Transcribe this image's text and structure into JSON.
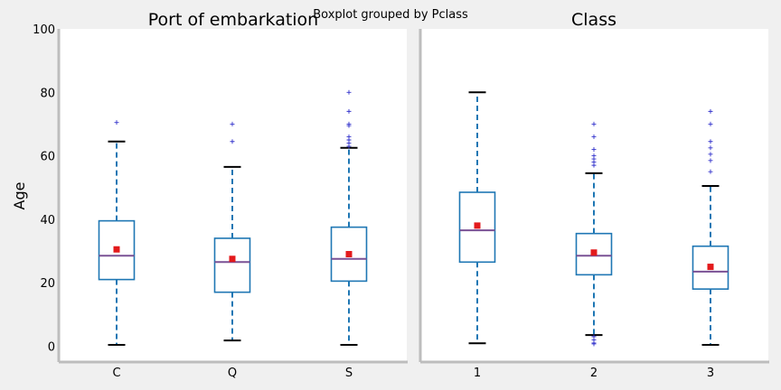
{
  "suptitle": "Boxplot grouped by Pclass",
  "chart_data": [
    {
      "type": "box",
      "title": "Port of embarkation",
      "ylabel": "Age",
      "ylim": [
        -5,
        100
      ],
      "yticks": [
        0,
        20,
        40,
        60,
        80,
        100
      ],
      "categories": [
        "C",
        "Q",
        "S"
      ],
      "boxes": [
        {
          "category": "C",
          "whisker_low": 0.4,
          "q1": 21,
          "median": 28.5,
          "q3": 39.5,
          "whisker_high": 64.5,
          "mean": 30.5,
          "outliers": [
            70.5
          ]
        },
        {
          "category": "Q",
          "whisker_low": 1.8,
          "q1": 17,
          "median": 26.5,
          "q3": 34,
          "whisker_high": 56.5,
          "mean": 27.5,
          "outliers": [
            64.5,
            70
          ]
        },
        {
          "category": "S",
          "whisker_low": 0.4,
          "q1": 20.5,
          "median": 27.5,
          "q3": 37.5,
          "whisker_high": 62.5,
          "mean": 29,
          "outliers": [
            63,
            64,
            65,
            66,
            69.5,
            70,
            74,
            80
          ]
        }
      ]
    },
    {
      "type": "box",
      "title": "Class",
      "ylim": [
        -5,
        100
      ],
      "categories": [
        "1",
        "2",
        "3"
      ],
      "boxes": [
        {
          "category": "1",
          "whisker_low": 0.9,
          "q1": 26.5,
          "median": 36.5,
          "q3": 48.5,
          "whisker_high": 80,
          "mean": 38,
          "outliers": []
        },
        {
          "category": "2",
          "whisker_low": 3.5,
          "q1": 22.5,
          "median": 28.5,
          "q3": 35.5,
          "whisker_high": 54.5,
          "mean": 29.5,
          "outliers": [
            0.7,
            1,
            2,
            3,
            57,
            58,
            59,
            60,
            62,
            66,
            70
          ]
        },
        {
          "category": "3",
          "whisker_low": 0.4,
          "q1": 18,
          "median": 23.5,
          "q3": 31.5,
          "whisker_high": 50.5,
          "mean": 25,
          "outliers": [
            55,
            58.5,
            60.5,
            62.5,
            64.5,
            70,
            74
          ]
        }
      ]
    }
  ],
  "colors": {
    "box": "#1f77b4",
    "median": "#7a5195",
    "mean": "#e31a1c",
    "outlier": "#3333cc",
    "cap": "#000000",
    "frame": "#bdbdbd"
  }
}
